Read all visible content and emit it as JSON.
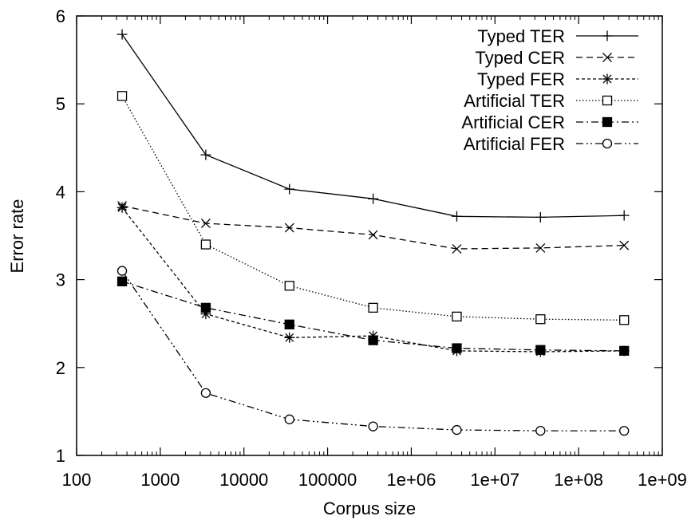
{
  "chart_data": {
    "type": "line",
    "title": "",
    "xlabel": "Corpus size",
    "ylabel": "Error rate",
    "xscale": "log",
    "xlim": [
      100,
      1000000000
    ],
    "ylim": [
      1,
      6
    ],
    "x_tick_labels": [
      "100",
      "1000",
      "10000",
      "100000",
      "1e+06",
      "1e+07",
      "1e+08",
      "1e+09"
    ],
    "y_tick_labels": [
      "1",
      "2",
      "3",
      "4",
      "5",
      "6"
    ],
    "grid": false,
    "legend_position": "top-right",
    "x": [
      350,
      3500,
      35000,
      350000,
      3500000,
      35000000,
      350000000
    ],
    "series": [
      {
        "name": "Typed TER",
        "marker": "plus",
        "dash": "solid",
        "values": [
          5.79,
          4.42,
          4.03,
          3.92,
          3.72,
          3.71,
          3.73
        ]
      },
      {
        "name": "Typed CER",
        "marker": "cross",
        "dash": "dashed",
        "values": [
          3.84,
          3.64,
          3.59,
          3.51,
          3.35,
          3.36,
          3.39
        ]
      },
      {
        "name": "Typed FER",
        "marker": "star",
        "dash": "short-dashed",
        "values": [
          3.82,
          2.61,
          2.34,
          2.36,
          2.19,
          2.18,
          2.19
        ]
      },
      {
        "name": "Artificial TER",
        "marker": "open-square",
        "dash": "dotted",
        "values": [
          5.09,
          3.4,
          2.93,
          2.68,
          2.58,
          2.55,
          2.54
        ]
      },
      {
        "name": "Artificial CER",
        "marker": "filled-square",
        "dash": "dash-dot",
        "values": [
          2.98,
          2.68,
          2.49,
          2.31,
          2.22,
          2.2,
          2.19
        ]
      },
      {
        "name": "Artificial FER",
        "marker": "open-circle",
        "dash": "dash-dot-dot",
        "values": [
          3.1,
          1.71,
          1.41,
          1.33,
          1.29,
          1.28,
          1.28
        ]
      }
    ]
  }
}
